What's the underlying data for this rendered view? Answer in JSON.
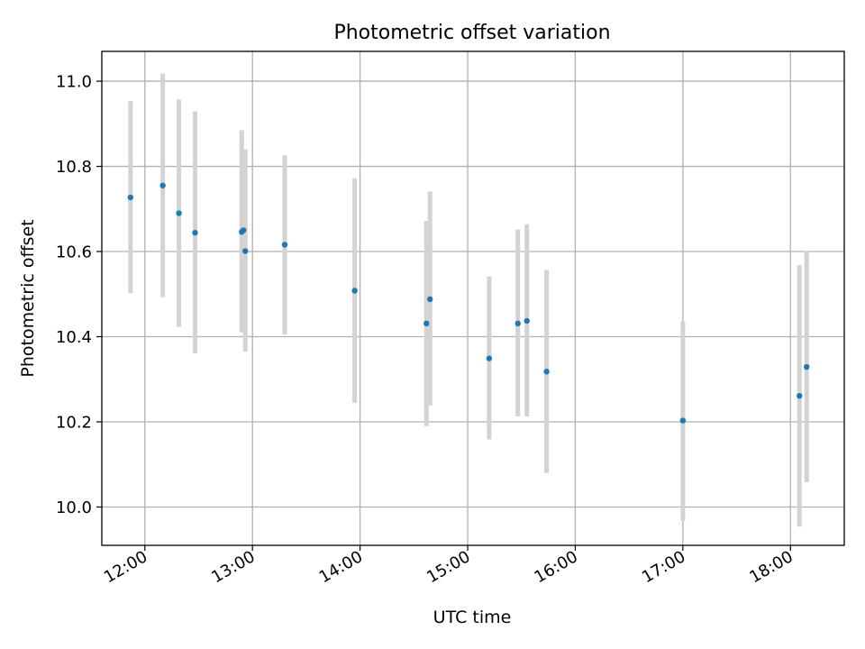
{
  "chart_data": {
    "type": "scatter",
    "title": "Photometric offset variation",
    "xlabel": "UTC time",
    "ylabel": "Photometric offset",
    "xlim": [
      "11:36",
      "18:30"
    ],
    "ylim": [
      9.91,
      11.07
    ],
    "grid": true,
    "x_ticks": [
      "12:00",
      "13:00",
      "14:00",
      "15:00",
      "16:00",
      "17:00",
      "18:00"
    ],
    "y_ticks": [
      "10.0",
      "10.2",
      "10.4",
      "10.6",
      "10.8",
      "11.0"
    ],
    "colors": {
      "points": "#1f77b4",
      "error_bars": "#d3d3d3",
      "grid": "#b0b0b0"
    },
    "series": [
      {
        "x": [
          "11:52",
          "12:10",
          "12:19",
          "12:28",
          "12:54",
          "12:55",
          "12:56",
          "13:18",
          "13:57",
          "14:37",
          "14:39",
          "15:12",
          "15:28",
          "15:33",
          "15:44",
          "17:00",
          "18:05",
          "18:09"
        ],
        "y": [
          10.727,
          10.755,
          10.69,
          10.644,
          10.646,
          10.65,
          10.601,
          10.616,
          10.508,
          10.431,
          10.488,
          10.349,
          10.431,
          10.437,
          10.318,
          10.203,
          10.261,
          10.329
        ],
        "y_err_low": [
          10.502,
          10.493,
          10.423,
          10.361,
          10.41,
          10.48,
          10.365,
          10.405,
          10.245,
          10.19,
          10.238,
          10.159,
          10.213,
          10.213,
          10.08,
          9.967,
          9.954,
          10.058
        ],
        "y_err_high": [
          10.953,
          11.018,
          10.957,
          10.929,
          10.885,
          10.84,
          10.84,
          10.826,
          10.772,
          10.672,
          10.741,
          10.541,
          10.652,
          10.664,
          10.557,
          10.436,
          10.568,
          10.601
        ]
      }
    ]
  }
}
